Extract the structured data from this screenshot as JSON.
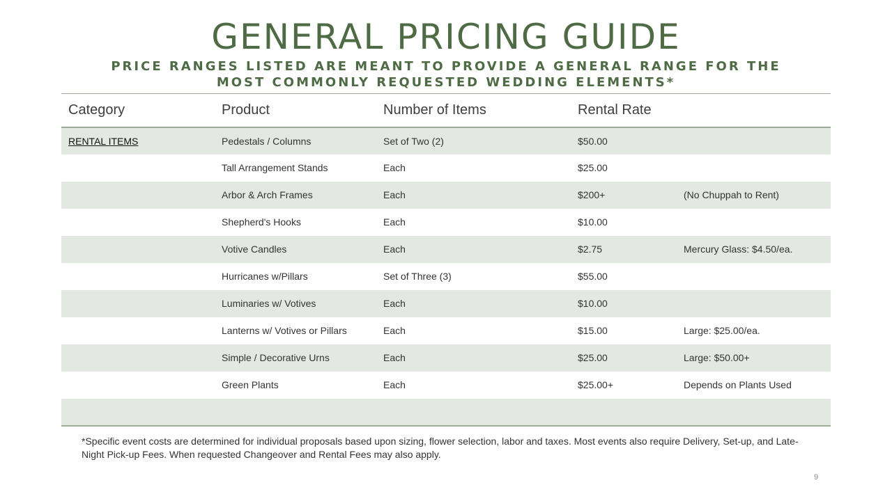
{
  "slide": {
    "title": "GENERAL PRICING GUIDE",
    "subtitle": "PRICE RANGES LISTED ARE MEANT TO PROVIDE A GENERAL RANGE FOR THE MOST COMMONLY REQUESTED WEDDING ELEMENTS*",
    "footnote": "*Specific event costs are determined for individual proposals based upon sizing, flower selection, labor and taxes. Most events also require Delivery, Set-up, and Late-Night Pick-up Fees.  When requested Changeover and Rental Fees may also apply.",
    "page_number": "9"
  },
  "colors": {
    "accent_green": "#4e6b45",
    "row_shade": "#e3e9e2",
    "rule": "#9bab95"
  },
  "table": {
    "headers": [
      "Category",
      "Product",
      "Number of Items",
      "Rental Rate",
      ""
    ],
    "rows": [
      {
        "category": "RENTAL ITEMS",
        "product": "Pedestals / Columns",
        "items": "Set of Two (2)",
        "rate": "$50.00",
        "note": ""
      },
      {
        "category": "",
        "product": "Tall Arrangement Stands",
        "items": "Each",
        "rate": "$25.00",
        "note": ""
      },
      {
        "category": "",
        "product": "Arbor & Arch Frames",
        "items": "Each",
        "rate": "$200+",
        "note": "(No Chuppah to Rent)"
      },
      {
        "category": "",
        "product": "Shepherd's Hooks",
        "items": "Each",
        "rate": "$10.00",
        "note": ""
      },
      {
        "category": "",
        "product": "Votive Candles",
        "items": "Each",
        "rate": "$2.75",
        "note": "Mercury Glass: $4.50/ea."
      },
      {
        "category": "",
        "product": "Hurricanes w/Pillars",
        "items": "Set of Three (3)",
        "rate": "$55.00",
        "note": ""
      },
      {
        "category": "",
        "product": "Luminaries w/ Votives",
        "items": "Each",
        "rate": "$10.00",
        "note": ""
      },
      {
        "category": "",
        "product": "Lanterns w/ Votives or Pillars",
        "items": "Each",
        "rate": "$15.00",
        "note": "Large: $25.00/ea."
      },
      {
        "category": "",
        "product": "Simple / Decorative Urns",
        "items": "Each",
        "rate": "$25.00",
        "note": "Large: $50.00+"
      },
      {
        "category": "",
        "product": "Green Plants",
        "items": "Each",
        "rate": "$25.00+",
        "note": "Depends on Plants Used"
      },
      {
        "category": "",
        "product": "",
        "items": "",
        "rate": "",
        "note": ""
      }
    ]
  }
}
